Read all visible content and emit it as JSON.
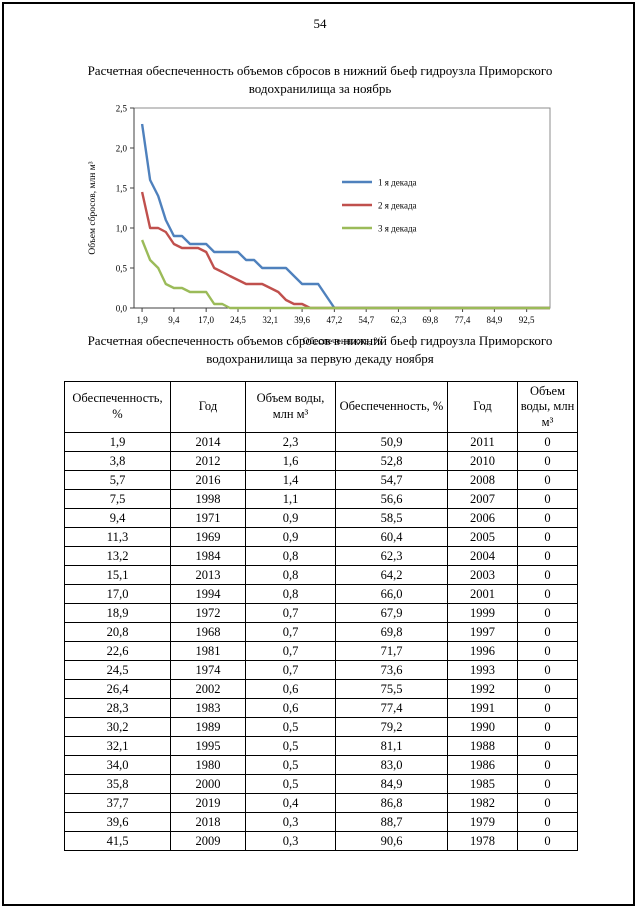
{
  "page": {
    "number": "54"
  },
  "chart_section": {
    "title": "Расчетная обеспеченность объемов сбросов в нижний бьеф гидроузла Приморского водохранилища за ноябрь"
  },
  "chart_data": {
    "type": "line",
    "title": "Расчетная обеспеченность объемов сбросов в нижний бьеф гидроузла Приморского водохранилища за ноябрь",
    "xlabel": "Обеспеченность, %",
    "ylabel": "Объем сбросов, млн м³",
    "ylim": [
      0,
      2.5
    ],
    "xlim": [
      0,
      98
    ],
    "yticks": [
      0,
      0.5,
      1.0,
      1.5,
      2.0,
      2.5
    ],
    "ytick_labels": [
      "0,0",
      "0,5",
      "1,0",
      "1,5",
      "2,0",
      "2,5"
    ],
    "xticks": [
      1.9,
      9.4,
      17.0,
      24.5,
      32.1,
      39.6,
      47.2,
      54.7,
      62.3,
      69.8,
      77.4,
      84.9,
      92.5
    ],
    "xtick_labels": [
      "1,9",
      "9,4",
      "17,0",
      "24,5",
      "32,1",
      "39,6",
      "47,2",
      "54,7",
      "62,3",
      "69,8",
      "77,4",
      "84,9",
      "92,5"
    ],
    "grid": false,
    "legend_position": "inside-right",
    "series": [
      {
        "name": "1 я декада",
        "color": "#4F81BD",
        "x": [
          1.9,
          3.8,
          5.7,
          7.5,
          9.4,
          11.3,
          13.2,
          15.1,
          17.0,
          18.9,
          20.8,
          22.6,
          24.5,
          26.4,
          28.3,
          30.2,
          32.1,
          34.0,
          35.8,
          37.7,
          39.6,
          41.5,
          43.4,
          45.3,
          47.2,
          49.1,
          98
        ],
        "y": [
          2.3,
          1.6,
          1.4,
          1.1,
          0.9,
          0.9,
          0.8,
          0.8,
          0.8,
          0.7,
          0.7,
          0.7,
          0.7,
          0.6,
          0.6,
          0.5,
          0.5,
          0.5,
          0.5,
          0.4,
          0.3,
          0.3,
          0.3,
          0.15,
          0,
          0,
          0
        ]
      },
      {
        "name": "2 я декада",
        "color": "#C0504D",
        "x": [
          1.9,
          3.8,
          5.7,
          7.5,
          9.4,
          11.3,
          13.2,
          15.1,
          17.0,
          18.9,
          20.8,
          22.6,
          24.5,
          26.4,
          28.3,
          30.2,
          32.1,
          34.0,
          35.8,
          37.7,
          39.6,
          41.5,
          98
        ],
        "y": [
          1.45,
          1.0,
          1.0,
          0.95,
          0.8,
          0.75,
          0.75,
          0.75,
          0.7,
          0.5,
          0.45,
          0.4,
          0.35,
          0.3,
          0.3,
          0.3,
          0.25,
          0.2,
          0.1,
          0.05,
          0.05,
          0,
          0
        ]
      },
      {
        "name": "3 я декада",
        "color": "#9BBB59",
        "x": [
          1.9,
          3.8,
          5.7,
          7.5,
          9.4,
          11.3,
          13.2,
          15.1,
          17.0,
          18.9,
          20.8,
          22.6,
          98
        ],
        "y": [
          0.85,
          0.6,
          0.5,
          0.3,
          0.25,
          0.25,
          0.2,
          0.2,
          0.2,
          0.05,
          0.05,
          0,
          0
        ]
      }
    ]
  },
  "table_section": {
    "title": "Расчетная обеспеченность объемов сбросов в нижний бьеф гидроузла Приморского водохранилища за первую декаду ноября",
    "headers": [
      "Обеспеченность, %",
      "Год",
      "Объем воды, млн м³",
      "Обеспеченность, %",
      "Год",
      "Объем воды, млн м³"
    ],
    "rows": [
      [
        "1,9",
        "2014",
        "2,3",
        "50,9",
        "2011",
        "0"
      ],
      [
        "3,8",
        "2012",
        "1,6",
        "52,8",
        "2010",
        "0"
      ],
      [
        "5,7",
        "2016",
        "1,4",
        "54,7",
        "2008",
        "0"
      ],
      [
        "7,5",
        "1998",
        "1,1",
        "56,6",
        "2007",
        "0"
      ],
      [
        "9,4",
        "1971",
        "0,9",
        "58,5",
        "2006",
        "0"
      ],
      [
        "11,3",
        "1969",
        "0,9",
        "60,4",
        "2005",
        "0"
      ],
      [
        "13,2",
        "1984",
        "0,8",
        "62,3",
        "2004",
        "0"
      ],
      [
        "15,1",
        "2013",
        "0,8",
        "64,2",
        "2003",
        "0"
      ],
      [
        "17,0",
        "1994",
        "0,8",
        "66,0",
        "2001",
        "0"
      ],
      [
        "18,9",
        "1972",
        "0,7",
        "67,9",
        "1999",
        "0"
      ],
      [
        "20,8",
        "1968",
        "0,7",
        "69,8",
        "1997",
        "0"
      ],
      [
        "22,6",
        "1981",
        "0,7",
        "71,7",
        "1996",
        "0"
      ],
      [
        "24,5",
        "1974",
        "0,7",
        "73,6",
        "1993",
        "0"
      ],
      [
        "26,4",
        "2002",
        "0,6",
        "75,5",
        "1992",
        "0"
      ],
      [
        "28,3",
        "1983",
        "0,6",
        "77,4",
        "1991",
        "0"
      ],
      [
        "30,2",
        "1989",
        "0,5",
        "79,2",
        "1990",
        "0"
      ],
      [
        "32,1",
        "1995",
        "0,5",
        "81,1",
        "1988",
        "0"
      ],
      [
        "34,0",
        "1980",
        "0,5",
        "83,0",
        "1986",
        "0"
      ],
      [
        "35,8",
        "2000",
        "0,5",
        "84,9",
        "1985",
        "0"
      ],
      [
        "37,7",
        "2019",
        "0,4",
        "86,8",
        "1982",
        "0"
      ],
      [
        "39,6",
        "2018",
        "0,3",
        "88,7",
        "1979",
        "0"
      ],
      [
        "41,5",
        "2009",
        "0,3",
        "90,6",
        "1978",
        "0"
      ]
    ]
  }
}
